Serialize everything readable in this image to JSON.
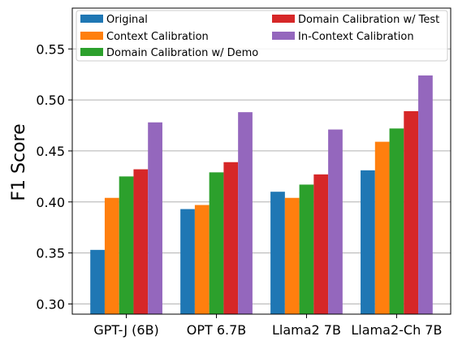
{
  "chart_data": {
    "type": "bar",
    "title": "",
    "xlabel": "",
    "ylabel": "F1 Score",
    "ylim": [
      0.29,
      0.59
    ],
    "yticks": [
      0.3,
      0.35,
      0.4,
      0.45,
      0.5,
      0.55
    ],
    "ytick_labels": [
      "0.30",
      "0.35",
      "0.40",
      "0.45",
      "0.50",
      "0.55"
    ],
    "grid": "horizontal",
    "legend_position": "top",
    "categories": [
      "GPT-J (6B)",
      "OPT 6.7B",
      "Llama2 7B",
      "Llama2-Ch 7B"
    ],
    "series": [
      {
        "name": "Original",
        "color": "#1f77b4",
        "values": [
          0.353,
          0.393,
          0.41,
          0.431
        ]
      },
      {
        "name": "Context Calibration",
        "color": "#ff7f0e",
        "values": [
          0.404,
          0.397,
          0.404,
          0.459
        ]
      },
      {
        "name": "Domain Calibration w/ Demo",
        "color": "#2ca02c",
        "values": [
          0.425,
          0.429,
          0.417,
          0.472
        ]
      },
      {
        "name": "Domain Calibration w/ Test",
        "color": "#d62728",
        "values": [
          0.432,
          0.439,
          0.427,
          0.489
        ]
      },
      {
        "name": "In-Context Calibration",
        "color": "#9467bd",
        "values": [
          0.478,
          0.488,
          0.471,
          0.524
        ]
      }
    ]
  }
}
